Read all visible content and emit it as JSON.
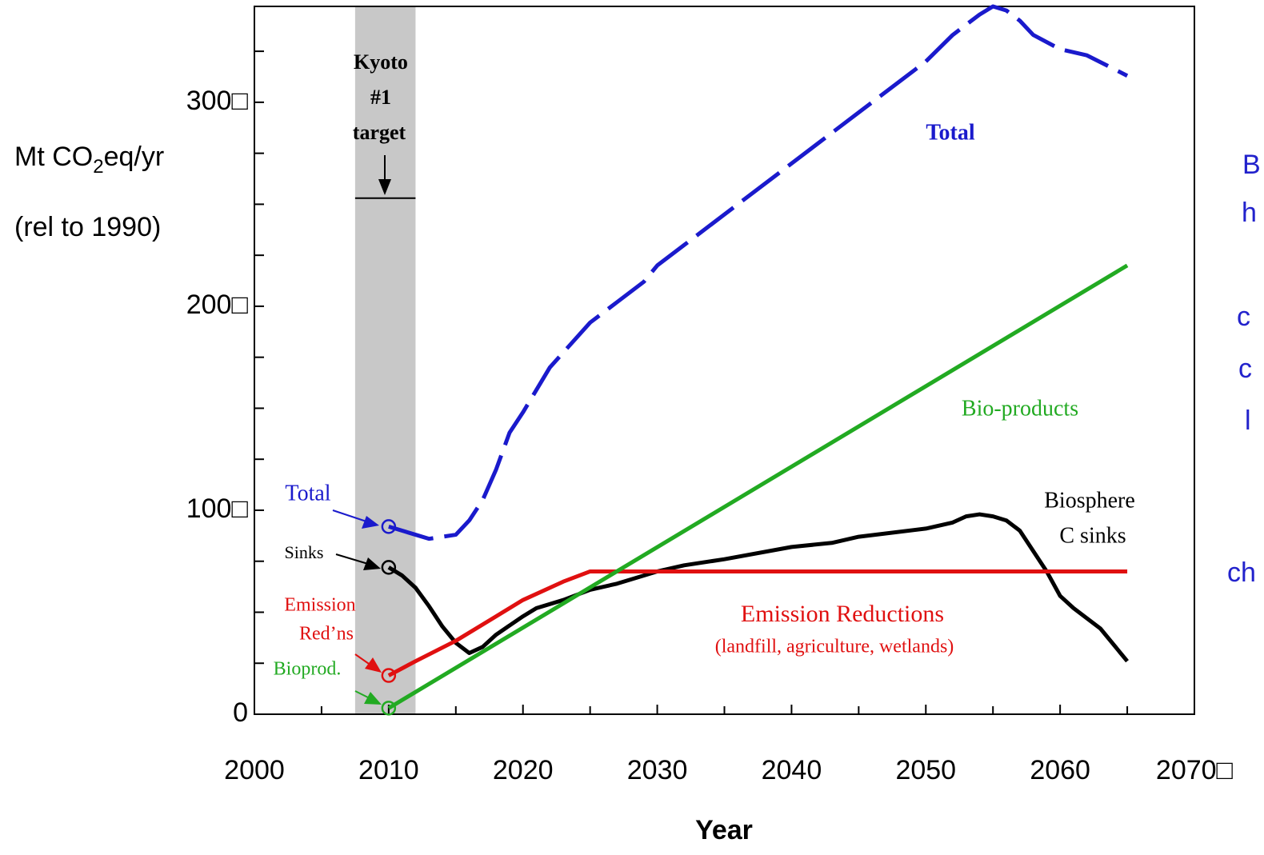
{
  "chart_data": {
    "type": "line",
    "y_label": {
      "main": "Mt CO",
      "sub": "2",
      "rest": "eq/yr"
    },
    "y_label_2": "(rel to 1990)",
    "x_label": "Year",
    "xlim": [
      2000,
      2070
    ],
    "xticks": [
      2000,
      2010,
      2020,
      2030,
      2040,
      2050,
      2060,
      {
        "value": 2070,
        "label": "2070□"
      }
    ],
    "xminor": [
      2005,
      2015,
      2025,
      2035,
      2045,
      2055,
      2065
    ],
    "ylim": [
      0,
      347
    ],
    "yticks": [
      0,
      {
        "value": 100,
        "label": "100□"
      },
      {
        "value": 200,
        "label": "200□"
      },
      {
        "value": 300,
        "label": "300□"
      }
    ],
    "yminor": [
      25,
      50,
      75,
      125,
      150,
      175,
      225,
      250,
      275,
      325
    ],
    "kyoto_band": [
      2007.5,
      2012
    ],
    "kyoto_target": 253,
    "kyoto_text": [
      "Kyoto",
      "#1",
      "target"
    ],
    "series": [
      {
        "name": "Total",
        "color": "#1a1acc",
        "dashed": true,
        "x": [
          2010,
          2012,
          2013,
          2015,
          2016,
          2017,
          2018,
          2019,
          2020,
          2022,
          2025,
          2027,
          2029,
          2030,
          2032,
          2035,
          2037,
          2040,
          2043,
          2045,
          2048,
          2050,
          2052,
          2054,
          2055,
          2056,
          2057,
          2058,
          2060,
          2062,
          2065
        ],
        "values": [
          92,
          88,
          86,
          88,
          95,
          105,
          120,
          138,
          148,
          170,
          192,
          202,
          212,
          220,
          230,
          245,
          255,
          270,
          285,
          295,
          310,
          320,
          333,
          343,
          347,
          345,
          340,
          333,
          326,
          323,
          313
        ]
      },
      {
        "name": "Biosphere C sinks",
        "color": "#000000",
        "dashed": false,
        "x": [
          2010,
          2011,
          2012,
          2013,
          2014,
          2015,
          2016,
          2017,
          2018,
          2020,
          2021,
          2023,
          2025,
          2027,
          2030,
          2032,
          2035,
          2040,
          2043,
          2045,
          2050,
          2052,
          2053,
          2054,
          2055,
          2056,
          2057,
          2058,
          2059,
          2060,
          2061,
          2063,
          2065
        ],
        "values": [
          72,
          68,
          62,
          53,
          43,
          35,
          30,
          33,
          39,
          48,
          52,
          56,
          61,
          64,
          70,
          73,
          76,
          82,
          84,
          87,
          91,
          94,
          97,
          98,
          97,
          95,
          90,
          80,
          70,
          58,
          52,
          42,
          26
        ]
      },
      {
        "name": "Emission Reductions",
        "color": "#e01010",
        "dashed": false,
        "x": [
          2010,
          2012,
          2015,
          2018,
          2020,
          2023,
          2025,
          2065
        ],
        "values": [
          19,
          26,
          36,
          48,
          56,
          65,
          70,
          70
        ]
      },
      {
        "name": "Bio-products",
        "color": "#22aa22",
        "dashed": false,
        "x": [
          2010,
          2065
        ],
        "values": [
          3,
          220
        ]
      }
    ],
    "annotations": {
      "total": "Total",
      "bio": "Bio-products",
      "sinks_1": "Biosphere",
      "sinks_2": "C sinks",
      "er": "Emission Reductions",
      "er_sub": "(landfill, agriculture, wetlands)",
      "left_total": "Total",
      "left_sinks": "Sinks",
      "left_er_1": "Emission",
      "left_er_2": "Red’ns",
      "left_bio": "Bioprod."
    },
    "side_text": [
      "B",
      "h",
      "c",
      "c",
      "l",
      "ch"
    ]
  }
}
